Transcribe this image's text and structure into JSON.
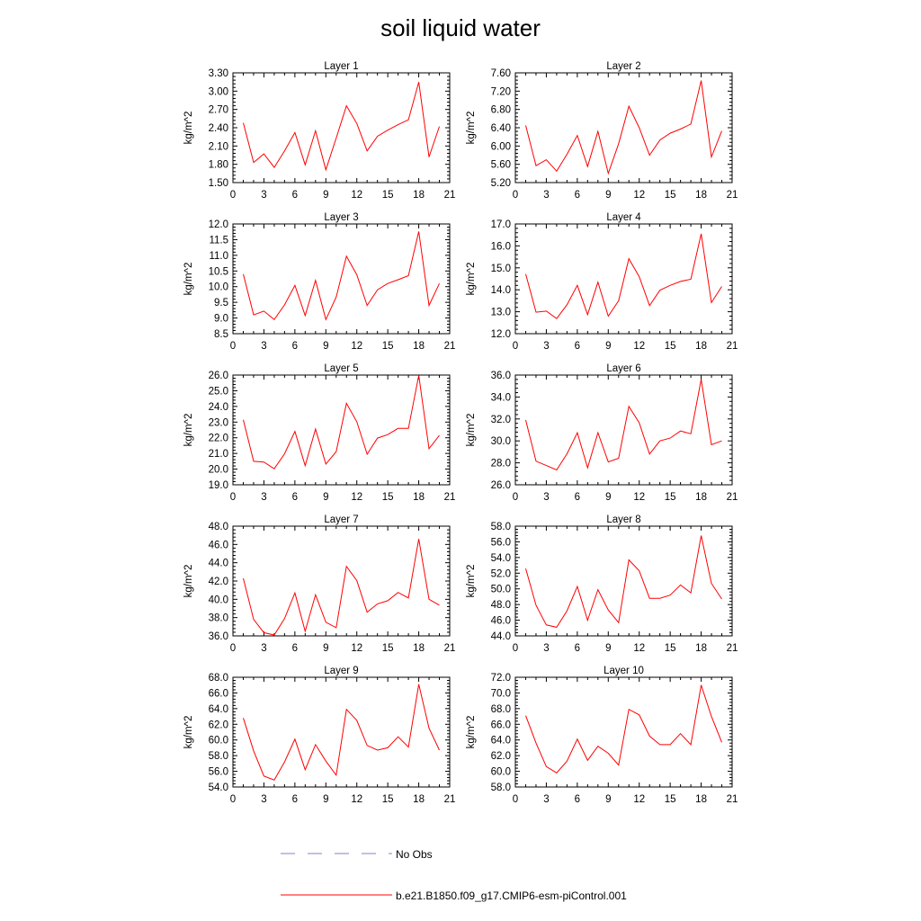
{
  "figure": {
    "title": "soil liquid water",
    "legend": [
      {
        "label": "No Obs",
        "color": "#8080d0",
        "style": "dashed"
      },
      {
        "label": "b.e21.B1850.f09_g17.CMIP6-esm-piControl.001",
        "color": "#ff0000",
        "style": "solid"
      }
    ]
  },
  "chart_data": [
    {
      "type": "line",
      "title": "Layer 1",
      "ylabel": "kg/m^2",
      "xlim": [
        0,
        21
      ],
      "ylim": [
        1.5,
        3.3
      ],
      "xticks": [
        0,
        3,
        6,
        9,
        12,
        15,
        18,
        21
      ],
      "xtick_labels": [
        "0",
        "3",
        "6",
        "9",
        "12",
        "15",
        "18",
        "21"
      ],
      "yticks": [
        1.5,
        1.8,
        2.1,
        2.4,
        2.7,
        3.0,
        3.3
      ],
      "ytick_labels": [
        "1.50",
        "1.80",
        "2.10",
        "2.40",
        "2.70",
        "3.00",
        "3.30"
      ],
      "series": [
        {
          "color": "#ff0000",
          "x": [
            1,
            2,
            3,
            4,
            5,
            6,
            7,
            8,
            9,
            10,
            11,
            12,
            13,
            14,
            15,
            16,
            17,
            18,
            19,
            20
          ],
          "y": [
            2.48,
            1.83,
            1.97,
            1.75,
            2.02,
            2.32,
            1.79,
            2.35,
            1.71,
            2.23,
            2.76,
            2.47,
            2.02,
            2.26,
            2.36,
            2.45,
            2.53,
            3.15,
            1.92,
            2.42
          ]
        }
      ]
    },
    {
      "type": "line",
      "title": "Layer 2",
      "ylabel": "kg/m^2",
      "xlim": [
        0,
        21
      ],
      "ylim": [
        5.2,
        7.6
      ],
      "xticks": [
        0,
        3,
        6,
        9,
        12,
        15,
        18,
        21
      ],
      "xtick_labels": [
        "0",
        "3",
        "6",
        "9",
        "12",
        "15",
        "18",
        "21"
      ],
      "yticks": [
        5.2,
        5.6,
        6.0,
        6.4,
        6.8,
        7.2,
        7.6
      ],
      "ytick_labels": [
        "5.20",
        "5.60",
        "6.00",
        "6.40",
        "6.80",
        "7.20",
        "7.60"
      ],
      "series": [
        {
          "color": "#ff0000",
          "x": [
            1,
            2,
            3,
            4,
            5,
            6,
            7,
            8,
            9,
            10,
            11,
            12,
            13,
            14,
            15,
            16,
            17,
            18,
            19,
            20
          ],
          "y": [
            6.45,
            5.57,
            5.7,
            5.45,
            5.82,
            6.23,
            5.55,
            6.32,
            5.4,
            6.05,
            6.87,
            6.4,
            5.8,
            6.13,
            6.28,
            6.37,
            6.48,
            7.43,
            5.76,
            6.33
          ]
        }
      ]
    },
    {
      "type": "line",
      "title": "Layer 3",
      "ylabel": "kg/m^2",
      "xlim": [
        0,
        21
      ],
      "ylim": [
        8.5,
        12.0
      ],
      "xticks": [
        0,
        3,
        6,
        9,
        12,
        15,
        18,
        21
      ],
      "xtick_labels": [
        "0",
        "3",
        "6",
        "9",
        "12",
        "15",
        "18",
        "21"
      ],
      "yticks": [
        8.5,
        9.0,
        9.5,
        10.0,
        10.5,
        11.0,
        11.5,
        12.0
      ],
      "ytick_labels": [
        "8.5",
        "9.0",
        "9.5",
        "10.0",
        "10.5",
        "11.0",
        "11.5",
        "12.0"
      ],
      "series": [
        {
          "color": "#ff0000",
          "x": [
            1,
            2,
            3,
            4,
            5,
            6,
            7,
            8,
            9,
            10,
            11,
            12,
            13,
            14,
            15,
            16,
            17,
            18,
            19,
            20
          ],
          "y": [
            10.4,
            9.1,
            9.22,
            8.95,
            9.42,
            10.04,
            9.08,
            10.2,
            8.95,
            9.67,
            10.97,
            10.38,
            9.4,
            9.9,
            10.1,
            10.22,
            10.35,
            11.76,
            9.4,
            10.1
          ]
        }
      ]
    },
    {
      "type": "line",
      "title": "Layer 4",
      "ylabel": "kg/m^2",
      "xlim": [
        0,
        21
      ],
      "ylim": [
        12.0,
        17.0
      ],
      "xticks": [
        0,
        3,
        6,
        9,
        12,
        15,
        18,
        21
      ],
      "xtick_labels": [
        "0",
        "3",
        "6",
        "9",
        "12",
        "15",
        "18",
        "21"
      ],
      "yticks": [
        12,
        13,
        14,
        15,
        16,
        17
      ],
      "ytick_labels": [
        "12.0",
        "13.0",
        "14.0",
        "15.0",
        "16.0",
        "17.0"
      ],
      "series": [
        {
          "color": "#ff0000",
          "x": [
            1,
            2,
            3,
            4,
            5,
            6,
            7,
            8,
            9,
            10,
            11,
            12,
            13,
            14,
            15,
            16,
            17,
            18,
            19,
            20
          ],
          "y": [
            14.72,
            12.98,
            13.03,
            12.69,
            13.32,
            14.2,
            12.87,
            14.35,
            12.8,
            13.5,
            15.42,
            14.6,
            13.28,
            13.98,
            14.2,
            14.38,
            14.48,
            16.55,
            13.42,
            14.15
          ]
        }
      ]
    },
    {
      "type": "line",
      "title": "Layer 5",
      "ylabel": "kg/m^2",
      "xlim": [
        0,
        21
      ],
      "ylim": [
        19.0,
        26.0
      ],
      "xticks": [
        0,
        3,
        6,
        9,
        12,
        15,
        18,
        21
      ],
      "xtick_labels": [
        "0",
        "3",
        "6",
        "9",
        "12",
        "15",
        "18",
        "21"
      ],
      "yticks": [
        19,
        20,
        21,
        22,
        23,
        24,
        25,
        26
      ],
      "ytick_labels": [
        "19.0",
        "20.0",
        "21.0",
        "22.0",
        "23.0",
        "24.0",
        "25.0",
        "26.0"
      ],
      "series": [
        {
          "color": "#ff0000",
          "x": [
            1,
            2,
            3,
            4,
            5,
            6,
            7,
            8,
            9,
            10,
            11,
            12,
            13,
            14,
            15,
            16,
            17,
            18,
            19,
            20
          ],
          "y": [
            23.15,
            20.5,
            20.45,
            20.02,
            20.98,
            22.4,
            20.22,
            22.55,
            20.32,
            21.12,
            24.2,
            23.02,
            20.95,
            21.98,
            22.2,
            22.6,
            22.6,
            25.98,
            21.3,
            22.15
          ]
        }
      ]
    },
    {
      "type": "line",
      "title": "Layer 6",
      "ylabel": "kg/m^2",
      "xlim": [
        0,
        21
      ],
      "ylim": [
        26.0,
        36.0
      ],
      "xticks": [
        0,
        3,
        6,
        9,
        12,
        15,
        18,
        21
      ],
      "xtick_labels": [
        "0",
        "3",
        "6",
        "9",
        "12",
        "15",
        "18",
        "21"
      ],
      "yticks": [
        26,
        28,
        30,
        32,
        34,
        36
      ],
      "ytick_labels": [
        "26.0",
        "28.0",
        "30.0",
        "32.0",
        "34.0",
        "36.0"
      ],
      "series": [
        {
          "color": "#ff0000",
          "x": [
            1,
            2,
            3,
            4,
            5,
            6,
            7,
            8,
            9,
            10,
            11,
            12,
            13,
            14,
            15,
            16,
            17,
            18,
            19,
            20
          ],
          "y": [
            31.9,
            28.15,
            27.75,
            27.35,
            28.82,
            30.75,
            27.55,
            30.75,
            28.08,
            28.42,
            33.15,
            31.65,
            28.8,
            30.0,
            30.25,
            30.9,
            30.65,
            35.6,
            29.65,
            30.0
          ]
        }
      ]
    },
    {
      "type": "line",
      "title": "Layer 7",
      "ylabel": "kg/m^2",
      "xlim": [
        0,
        21
      ],
      "ylim": [
        36.0,
        48.0
      ],
      "xticks": [
        0,
        3,
        6,
        9,
        12,
        15,
        18,
        21
      ],
      "xtick_labels": [
        "0",
        "3",
        "6",
        "9",
        "12",
        "15",
        "18",
        "21"
      ],
      "yticks": [
        36,
        38,
        40,
        42,
        44,
        46,
        48
      ],
      "ytick_labels": [
        "36.0",
        "38.0",
        "40.0",
        "42.0",
        "44.0",
        "46.0",
        "48.0"
      ],
      "series": [
        {
          "color": "#ff0000",
          "x": [
            1,
            2,
            3,
            4,
            5,
            6,
            7,
            8,
            9,
            10,
            11,
            12,
            13,
            14,
            15,
            16,
            17,
            18,
            19,
            20
          ],
          "y": [
            42.3,
            37.8,
            36.35,
            36.1,
            37.9,
            40.7,
            36.5,
            40.5,
            37.5,
            36.9,
            43.6,
            42.05,
            38.6,
            39.5,
            39.85,
            40.75,
            40.15,
            46.6,
            40.0,
            39.35
          ]
        }
      ]
    },
    {
      "type": "line",
      "title": "Layer 8",
      "ylabel": "kg/m^2",
      "xlim": [
        0,
        21
      ],
      "ylim": [
        44.0,
        58.0
      ],
      "xticks": [
        0,
        3,
        6,
        9,
        12,
        15,
        18,
        21
      ],
      "xtick_labels": [
        "0",
        "3",
        "6",
        "9",
        "12",
        "15",
        "18",
        "21"
      ],
      "yticks": [
        44,
        46,
        48,
        50,
        52,
        54,
        56,
        58
      ],
      "ytick_labels": [
        "44.0",
        "46.0",
        "48.0",
        "50.0",
        "52.0",
        "54.0",
        "56.0",
        "58.0"
      ],
      "series": [
        {
          "color": "#ff0000",
          "x": [
            1,
            2,
            3,
            4,
            5,
            6,
            7,
            8,
            9,
            10,
            11,
            12,
            13,
            14,
            15,
            16,
            17,
            18,
            19,
            20
          ],
          "y": [
            52.6,
            47.9,
            45.4,
            45.1,
            47.2,
            50.3,
            46.0,
            49.9,
            47.3,
            45.7,
            53.7,
            52.3,
            48.8,
            48.8,
            49.2,
            50.5,
            49.5,
            56.8,
            50.7,
            48.7
          ]
        }
      ]
    },
    {
      "type": "line",
      "title": "Layer 9",
      "ylabel": "kg/m^2",
      "xlim": [
        0,
        21
      ],
      "ylim": [
        54.0,
        68.0
      ],
      "xticks": [
        0,
        3,
        6,
        9,
        12,
        15,
        18,
        21
      ],
      "xtick_labels": [
        "0",
        "3",
        "6",
        "9",
        "12",
        "15",
        "18",
        "21"
      ],
      "yticks": [
        54,
        56,
        58,
        60,
        62,
        64,
        66,
        68
      ],
      "ytick_labels": [
        "54.0",
        "56.0",
        "58.0",
        "60.0",
        "62.0",
        "64.0",
        "66.0",
        "68.0"
      ],
      "series": [
        {
          "color": "#ff0000",
          "x": [
            1,
            2,
            3,
            4,
            5,
            6,
            7,
            8,
            9,
            10,
            11,
            12,
            13,
            14,
            15,
            16,
            17,
            18,
            19,
            20
          ],
          "y": [
            62.8,
            58.6,
            55.4,
            54.9,
            57.2,
            60.1,
            56.2,
            59.4,
            57.3,
            55.5,
            63.9,
            62.5,
            59.3,
            58.7,
            59.0,
            60.4,
            59.1,
            67.1,
            61.5,
            58.7
          ]
        }
      ]
    },
    {
      "type": "line",
      "title": "Layer 10",
      "ylabel": "kg/m^2",
      "xlim": [
        0,
        21
      ],
      "ylim": [
        58.0,
        72.0
      ],
      "xticks": [
        0,
        3,
        6,
        9,
        12,
        15,
        18,
        21
      ],
      "xtick_labels": [
        "0",
        "3",
        "6",
        "9",
        "12",
        "15",
        "18",
        "21"
      ],
      "yticks": [
        58,
        60,
        62,
        64,
        66,
        68,
        70,
        72
      ],
      "ytick_labels": [
        "58.0",
        "60.0",
        "62.0",
        "64.0",
        "66.0",
        "68.0",
        "70.0",
        "72.0"
      ],
      "series": [
        {
          "color": "#ff0000",
          "x": [
            1,
            2,
            3,
            4,
            5,
            6,
            7,
            8,
            9,
            10,
            11,
            12,
            13,
            14,
            15,
            16,
            17,
            18,
            19,
            20
          ],
          "y": [
            67.1,
            63.6,
            60.6,
            59.8,
            61.3,
            64.1,
            61.4,
            63.2,
            62.3,
            60.8,
            67.9,
            67.2,
            64.5,
            63.4,
            63.4,
            64.8,
            63.4,
            71.0,
            67.0,
            63.7
          ]
        }
      ]
    }
  ]
}
